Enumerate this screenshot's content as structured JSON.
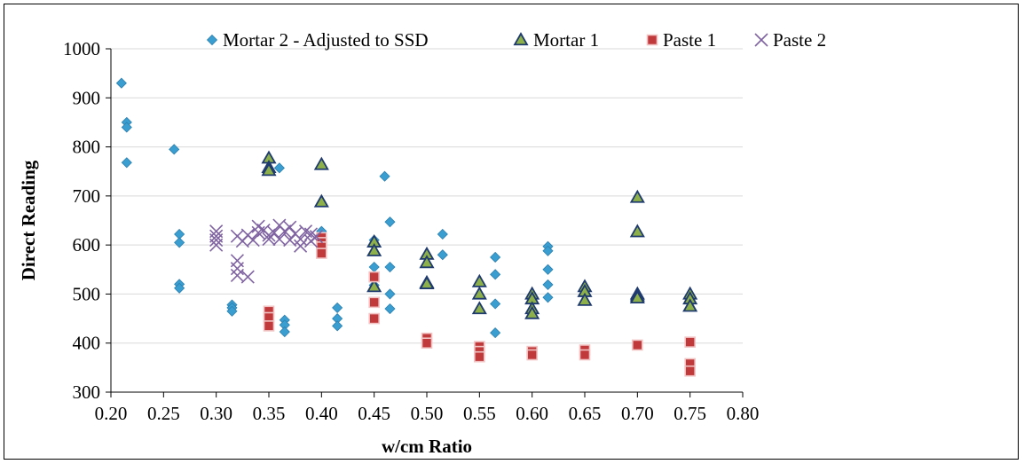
{
  "chart_data": {
    "type": "scatter",
    "title": "",
    "xlabel": "w/cm Ratio",
    "ylabel": "Direct Reading",
    "xlim": [
      0.2,
      0.8
    ],
    "ylim": [
      300,
      1000
    ],
    "xticks": [
      "0.20",
      "0.25",
      "0.30",
      "0.35",
      "0.40",
      "0.45",
      "0.50",
      "0.55",
      "0.60",
      "0.65",
      "0.70",
      "0.75",
      "0.80"
    ],
    "yticks": [
      "300",
      "400",
      "500",
      "600",
      "700",
      "800",
      "900",
      "1000"
    ],
    "grid": "horizontal",
    "legend_position": "top",
    "series": [
      {
        "name": "Mortar 2 - Adjusted to SSD",
        "marker": "diamond",
        "color": "#3a9fd0",
        "points": [
          [
            0.21,
            930
          ],
          [
            0.215,
            850
          ],
          [
            0.215,
            840
          ],
          [
            0.215,
            768
          ],
          [
            0.26,
            795
          ],
          [
            0.265,
            622
          ],
          [
            0.265,
            605
          ],
          [
            0.265,
            520
          ],
          [
            0.265,
            512
          ],
          [
            0.315,
            478
          ],
          [
            0.315,
            472
          ],
          [
            0.315,
            465
          ],
          [
            0.36,
            757
          ],
          [
            0.365,
            447
          ],
          [
            0.365,
            437
          ],
          [
            0.365,
            423
          ],
          [
            0.4,
            628
          ],
          [
            0.415,
            472
          ],
          [
            0.415,
            450
          ],
          [
            0.415,
            435
          ],
          [
            0.45,
            610
          ],
          [
            0.45,
            555
          ],
          [
            0.45,
            518
          ],
          [
            0.46,
            740
          ],
          [
            0.465,
            647
          ],
          [
            0.465,
            555
          ],
          [
            0.465,
            500
          ],
          [
            0.465,
            470
          ],
          [
            0.515,
            622
          ],
          [
            0.515,
            580
          ],
          [
            0.565,
            575
          ],
          [
            0.565,
            540
          ],
          [
            0.565,
            480
          ],
          [
            0.565,
            421
          ],
          [
            0.615,
            597
          ],
          [
            0.615,
            588
          ],
          [
            0.615,
            550
          ],
          [
            0.615,
            519
          ],
          [
            0.615,
            493
          ]
        ]
      },
      {
        "name": "Mortar 1",
        "marker": "triangle",
        "color": "#8db04a",
        "stroke": "#1f3a6e",
        "points": [
          [
            0.35,
            777
          ],
          [
            0.35,
            758
          ],
          [
            0.35,
            752
          ],
          [
            0.4,
            764
          ],
          [
            0.4,
            688
          ],
          [
            0.45,
            606
          ],
          [
            0.45,
            588
          ],
          [
            0.45,
            515
          ],
          [
            0.5,
            581
          ],
          [
            0.5,
            564
          ],
          [
            0.5,
            523
          ],
          [
            0.5,
            521
          ],
          [
            0.55,
            525
          ],
          [
            0.55,
            500
          ],
          [
            0.55,
            470
          ],
          [
            0.6,
            500
          ],
          [
            0.6,
            490
          ],
          [
            0.6,
            470
          ],
          [
            0.6,
            460
          ],
          [
            0.65,
            515
          ],
          [
            0.65,
            505
          ],
          [
            0.65,
            487
          ],
          [
            0.7,
            697
          ],
          [
            0.7,
            627
          ],
          [
            0.7,
            500
          ],
          [
            0.7,
            496
          ],
          [
            0.7,
            492
          ],
          [
            0.75,
            500
          ],
          [
            0.75,
            490
          ],
          [
            0.75,
            475
          ]
        ]
      },
      {
        "name": "Paste 1",
        "marker": "square",
        "color": "#c0393b",
        "points": [
          [
            0.35,
            465
          ],
          [
            0.35,
            452
          ],
          [
            0.35,
            435
          ],
          [
            0.4,
            615
          ],
          [
            0.4,
            605
          ],
          [
            0.4,
            596
          ],
          [
            0.4,
            583
          ],
          [
            0.45,
            535
          ],
          [
            0.45,
            483
          ],
          [
            0.45,
            450
          ],
          [
            0.5,
            410
          ],
          [
            0.5,
            400
          ],
          [
            0.55,
            393
          ],
          [
            0.55,
            383
          ],
          [
            0.55,
            372
          ],
          [
            0.6,
            383
          ],
          [
            0.6,
            376
          ],
          [
            0.65,
            386
          ],
          [
            0.65,
            376
          ],
          [
            0.7,
            396
          ],
          [
            0.75,
            402
          ],
          [
            0.75,
            358
          ],
          [
            0.75,
            343
          ]
        ]
      },
      {
        "name": "Paste 2",
        "marker": "x",
        "color": "#8064a2",
        "points": [
          [
            0.3,
            628
          ],
          [
            0.3,
            618
          ],
          [
            0.3,
            610
          ],
          [
            0.3,
            600
          ],
          [
            0.32,
            618
          ],
          [
            0.32,
            568
          ],
          [
            0.32,
            552
          ],
          [
            0.32,
            538
          ],
          [
            0.325,
            608
          ],
          [
            0.33,
            620
          ],
          [
            0.33,
            535
          ],
          [
            0.335,
            610
          ],
          [
            0.34,
            638
          ],
          [
            0.34,
            625
          ],
          [
            0.345,
            630
          ],
          [
            0.35,
            620
          ],
          [
            0.35,
            612
          ],
          [
            0.355,
            625
          ],
          [
            0.36,
            640
          ],
          [
            0.36,
            612
          ],
          [
            0.365,
            628
          ],
          [
            0.37,
            636
          ],
          [
            0.37,
            610
          ],
          [
            0.375,
            623
          ],
          [
            0.38,
            612
          ],
          [
            0.38,
            598
          ],
          [
            0.385,
            628
          ],
          [
            0.39,
            622
          ],
          [
            0.39,
            608
          ],
          [
            0.395,
            617
          ]
        ]
      }
    ]
  }
}
